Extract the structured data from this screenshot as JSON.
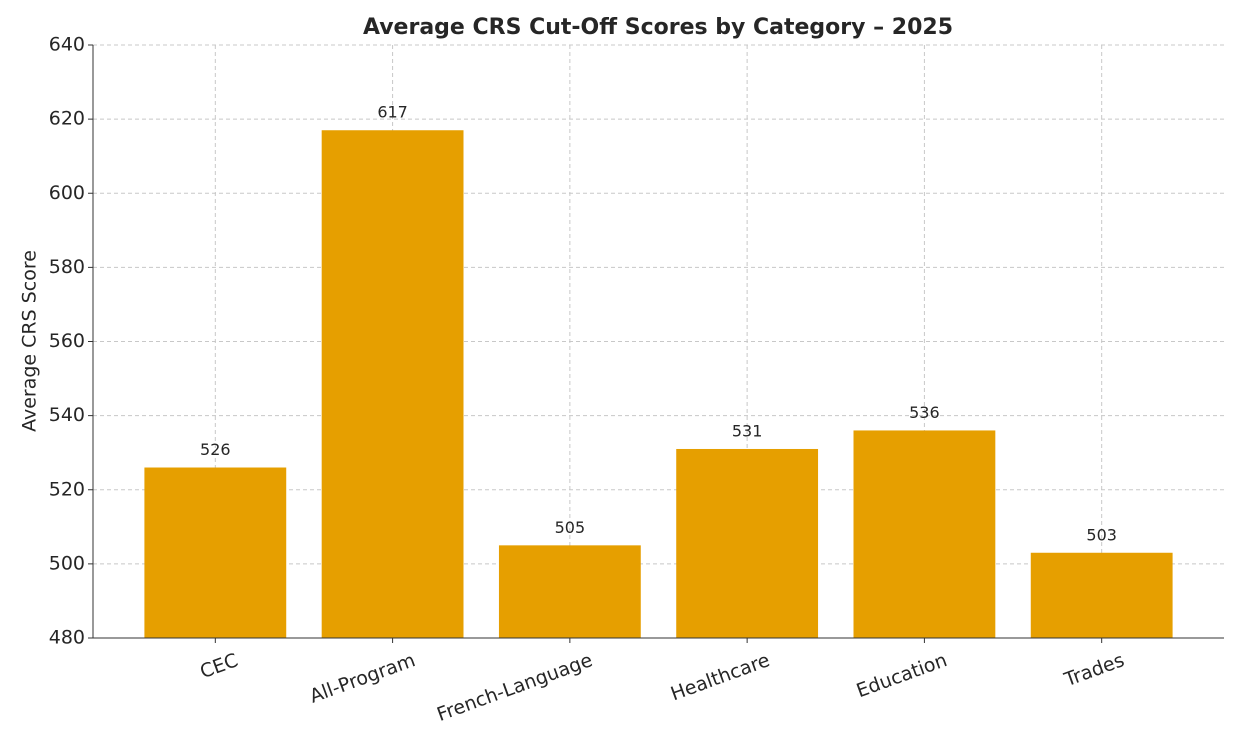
{
  "chart_data": {
    "type": "bar",
    "title": "Average CRS Cut-Off Scores by Category – 2025",
    "y_label": "Average CRS Score",
    "categories": [
      "CEC",
      "All-Program",
      "French-Language",
      "Healthcare",
      "Education",
      "Trades"
    ],
    "values": [
      526,
      617,
      505,
      531,
      536,
      503
    ],
    "color": "#e69f00",
    "ylim": [
      480,
      640
    ],
    "yticks": [
      480,
      500,
      520,
      540,
      560,
      580,
      600,
      620,
      640
    ],
    "grid": true
  }
}
